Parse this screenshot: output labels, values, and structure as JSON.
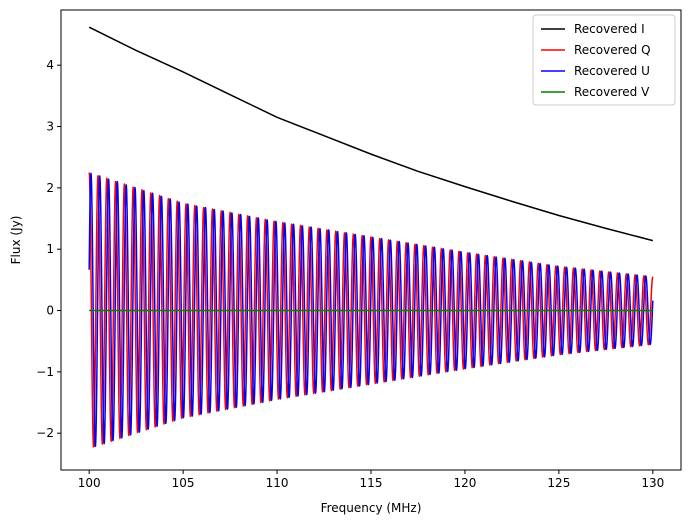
{
  "chart_data": {
    "type": "line",
    "title": "",
    "xlabel": "Frequency (MHz)",
    "ylabel": "Flux (Jy)",
    "xlim": [
      98.5,
      131.5
    ],
    "ylim": [
      -2.6,
      4.9
    ],
    "x_ticks": [
      100,
      105,
      110,
      115,
      120,
      125,
      130
    ],
    "y_ticks": [
      -2,
      -1,
      0,
      1,
      2,
      3,
      4
    ],
    "grid": false,
    "legend_position": "top-right",
    "x_range": [
      100,
      130
    ],
    "series": [
      {
        "name": "Recovered I",
        "color": "#000000",
        "x": [
          100,
          102.5,
          105,
          107.5,
          110,
          112.5,
          115,
          117.5,
          120,
          122.5,
          125,
          127.5,
          130
        ],
        "y": [
          4.62,
          4.24,
          3.89,
          3.52,
          3.15,
          2.85,
          2.55,
          2.27,
          2.02,
          1.78,
          1.55,
          1.34,
          1.14
        ]
      },
      {
        "name": "Recovered Q",
        "color": "#ff0000",
        "model": "oscillating",
        "amplitude_envelope": {
          "x": [
            100,
            105,
            110,
            115,
            120,
            125,
            130
          ],
          "y": [
            2.25,
            1.75,
            1.45,
            1.2,
            0.95,
            0.72,
            0.55
          ]
        },
        "oscillations": 64,
        "phase": 1.57
      },
      {
        "name": "Recovered U",
        "color": "#0000ff",
        "model": "oscillating",
        "amplitude_envelope": {
          "x": [
            100,
            105,
            110,
            115,
            120,
            125,
            130
          ],
          "y": [
            2.25,
            1.75,
            1.45,
            1.2,
            0.95,
            0.72,
            0.55
          ]
        },
        "oscillations": 64,
        "phase": 0.3
      },
      {
        "name": "Recovered V",
        "color": "#008000",
        "x": [
          100,
          130
        ],
        "y": [
          0,
          0
        ]
      }
    ]
  }
}
